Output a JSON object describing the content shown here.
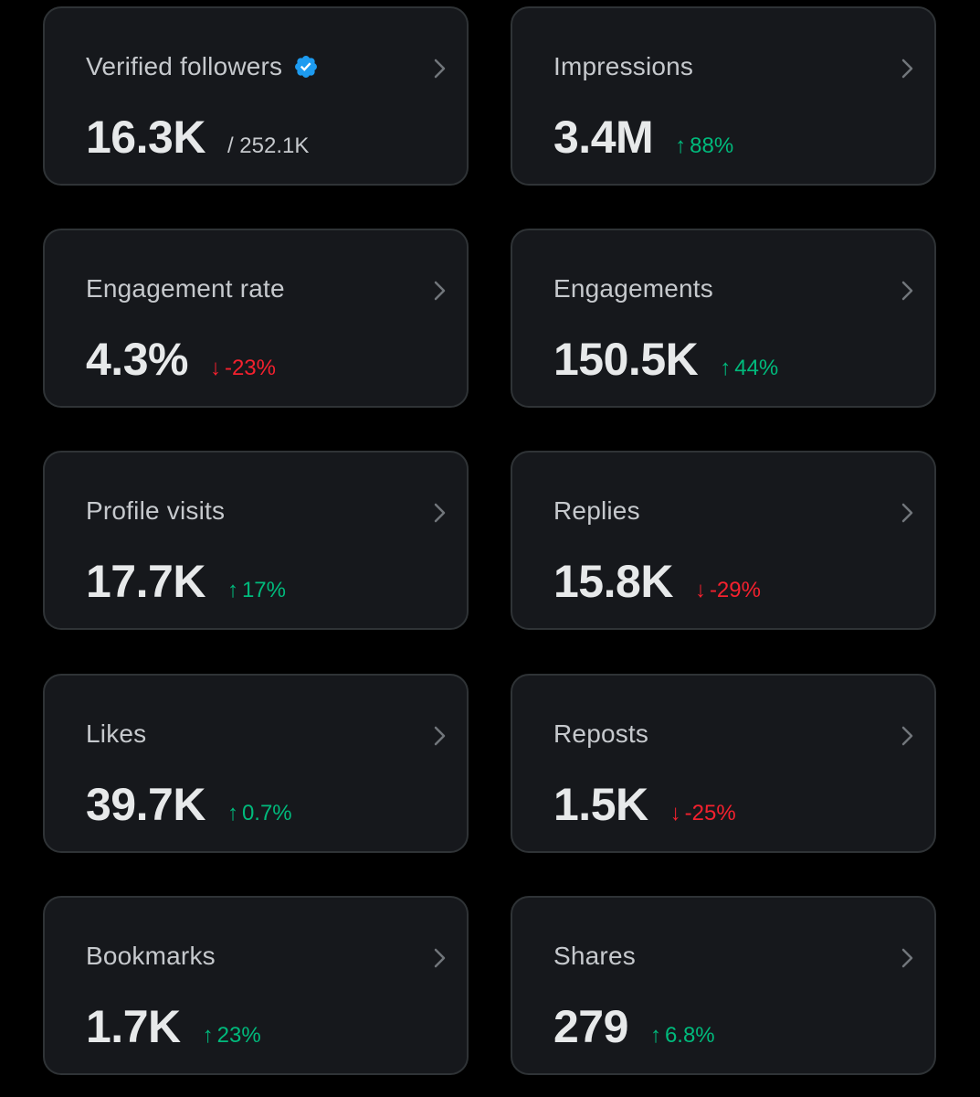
{
  "colors": {
    "background": "#000000",
    "card": "#16181c",
    "border": "#2f3336",
    "positive": "#00ba7c",
    "negative": "#f4212e",
    "verified": "#1d9bf0"
  },
  "cards": [
    {
      "title": "Verified followers",
      "value": "16.3K",
      "total": "/ 252.1K",
      "verified_icon": "verified-badge-icon"
    },
    {
      "title": "Impressions",
      "value": "3.4M",
      "arrow": "↑",
      "change": "88%",
      "direction": "up"
    },
    {
      "title": "Engagement rate",
      "value": "4.3%",
      "arrow": "↓",
      "change": "-23%",
      "direction": "down"
    },
    {
      "title": "Engagements",
      "value": "150.5K",
      "arrow": "↑",
      "change": "44%",
      "direction": "up"
    },
    {
      "title": "Profile visits",
      "value": "17.7K",
      "arrow": "↑",
      "change": "17%",
      "direction": "up"
    },
    {
      "title": "Replies",
      "value": "15.8K",
      "arrow": "↓",
      "change": "-29%",
      "direction": "down"
    },
    {
      "title": "Likes",
      "value": "39.7K",
      "arrow": "↑",
      "change": "0.7%",
      "direction": "up"
    },
    {
      "title": "Reposts",
      "value": "1.5K",
      "arrow": "↓",
      "change": "-25%",
      "direction": "down"
    },
    {
      "title": "Bookmarks",
      "value": "1.7K",
      "arrow": "↑",
      "change": "23%",
      "direction": "up"
    },
    {
      "title": "Shares",
      "value": "279",
      "arrow": "↑",
      "change": "6.8%",
      "direction": "up"
    }
  ]
}
